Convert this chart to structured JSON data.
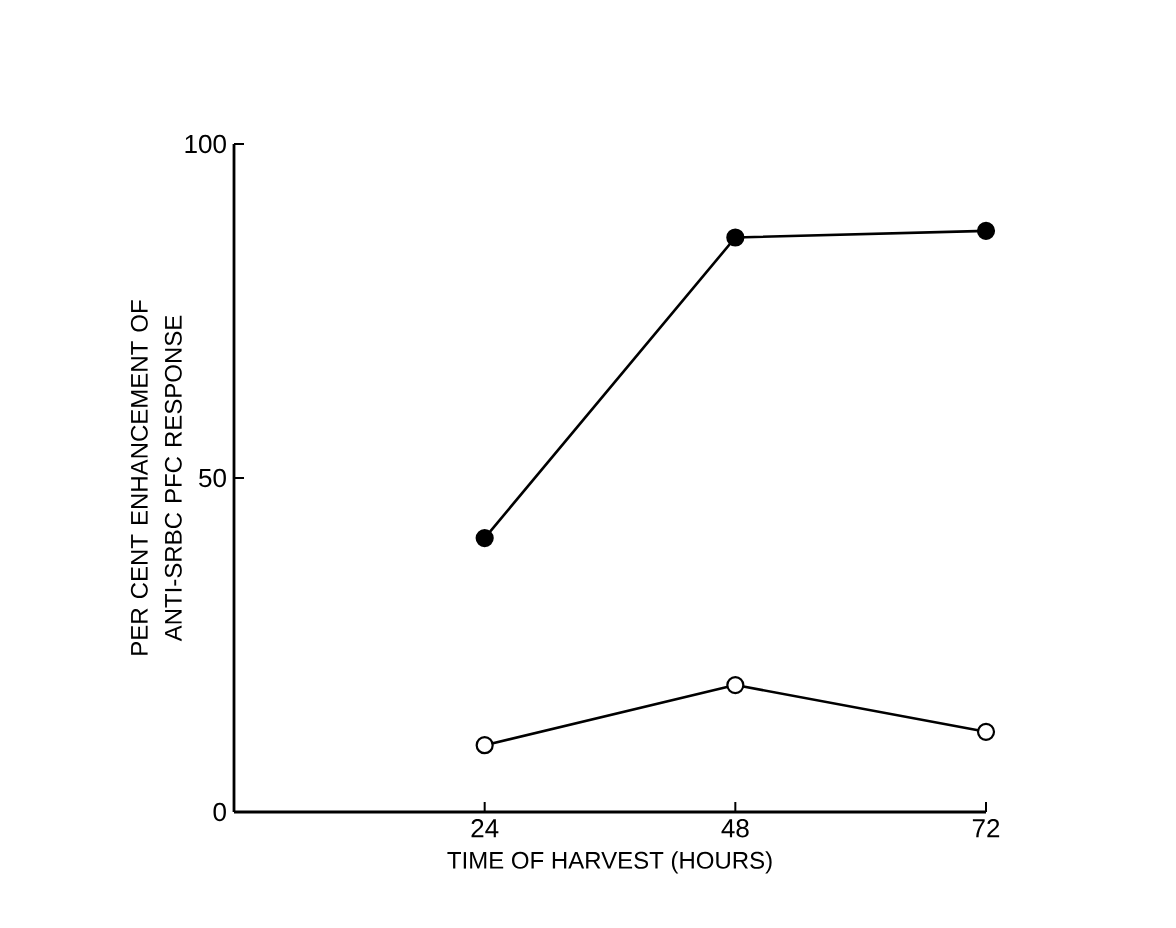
{
  "chart_data": {
    "type": "line",
    "xlabel": "TIME OF HARVEST (HOURS)",
    "ylabel": "PER CENT ENHANCEMENT OF ANTI-SRBC PFC RESPONSE",
    "xlim": [
      0,
      72
    ],
    "ylim": [
      0,
      100
    ],
    "xticks": [
      24,
      48,
      72
    ],
    "yticks": [
      0,
      50,
      100
    ],
    "grid": false,
    "line_style": "solid",
    "series": [
      {
        "x": [
          24,
          48,
          72
        ],
        "values": [
          41,
          86,
          87
        ],
        "color": "#000000",
        "marker": "circle"
      },
      {
        "x": [
          24,
          48,
          72
        ],
        "values": [
          10,
          19,
          12
        ],
        "color": "#000000",
        "marker": "circle"
      }
    ]
  }
}
